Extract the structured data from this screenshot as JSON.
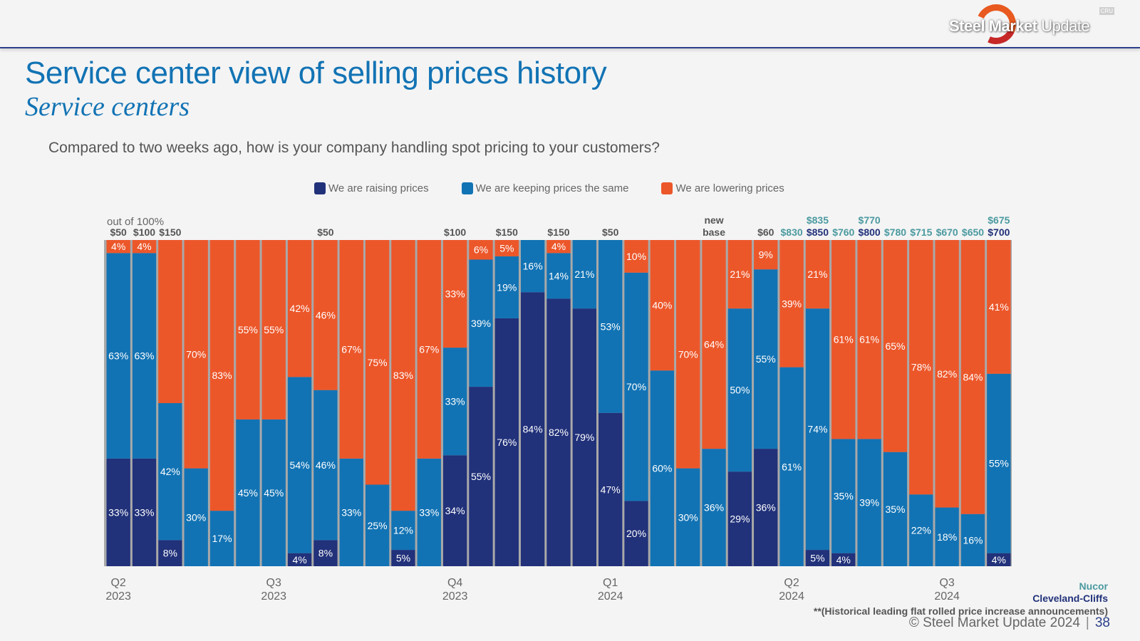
{
  "header": {
    "logo_bold": "Steel Market",
    "logo_light": "Update",
    "logo_badge": "CRU"
  },
  "title": "Service center view of selling prices history",
  "subtitle": "Service centers",
  "question": "Compared to two weeks ago, how is your company handling spot pricing to your customers?",
  "colors": {
    "raising": "#21317a",
    "same": "#1273b4",
    "lowering": "#ec572a",
    "nucor": "#4b9aa0",
    "cliffs": "#21317a",
    "announcement": "#555555"
  },
  "chart_data": {
    "type": "bar",
    "stacked": true,
    "normalized": true,
    "ylabel": "out of 100%",
    "ylim": [
      0,
      100
    ],
    "legend_position": "top",
    "series": [
      {
        "name": "We are raising prices",
        "key": "raising",
        "values": [
          33,
          33,
          8,
          0,
          0,
          0,
          0,
          4,
          8,
          0,
          0,
          5,
          0,
          34,
          55,
          76,
          84,
          82,
          79,
          47,
          20,
          0,
          0,
          0,
          29,
          36,
          0,
          5,
          4,
          0,
          0,
          0,
          0,
          0,
          4
        ]
      },
      {
        "name": "We are keeping prices the same",
        "key": "same",
        "values": [
          63,
          63,
          42,
          30,
          17,
          45,
          45,
          54,
          46,
          33,
          25,
          12,
          33,
          33,
          39,
          19,
          16,
          14,
          21,
          53,
          70,
          60,
          30,
          36,
          50,
          55,
          61,
          74,
          35,
          39,
          35,
          22,
          18,
          16,
          55
        ]
      },
      {
        "name": "We are lowering prices",
        "key": "lowering",
        "values": [
          4,
          4,
          50,
          70,
          83,
          55,
          55,
          42,
          46,
          67,
          75,
          83,
          67,
          33,
          6,
          5,
          0,
          4,
          0,
          0,
          10,
          40,
          70,
          64,
          21,
          9,
          39,
          21,
          61,
          61,
          65,
          78,
          82,
          84,
          41
        ]
      }
    ],
    "hidden_labels": {
      "lowering": [
        2
      ]
    },
    "x_ticks": [
      {
        "index": 0,
        "quarter": "Q2",
        "year": "2023"
      },
      {
        "index": 6,
        "quarter": "Q3",
        "year": "2023"
      },
      {
        "index": 13,
        "quarter": "Q4",
        "year": "2023"
      },
      {
        "index": 19,
        "quarter": "Q1",
        "year": "2024"
      },
      {
        "index": 26,
        "quarter": "Q2",
        "year": "2024"
      },
      {
        "index": 32,
        "quarter": "Q3",
        "year": "2024"
      }
    ],
    "announcements": [
      {
        "index": 0,
        "lines": [
          {
            "text": "$50",
            "type": "announcement"
          }
        ]
      },
      {
        "index": 1,
        "lines": [
          {
            "text": "$100",
            "type": "announcement"
          }
        ]
      },
      {
        "index": 2,
        "lines": [
          {
            "text": "$150",
            "type": "announcement"
          }
        ]
      },
      {
        "index": 8,
        "lines": [
          {
            "text": "$50",
            "type": "announcement"
          }
        ]
      },
      {
        "index": 13,
        "lines": [
          {
            "text": "$100",
            "type": "announcement"
          }
        ]
      },
      {
        "index": 15,
        "lines": [
          {
            "text": "$150",
            "type": "announcement"
          }
        ]
      },
      {
        "index": 17,
        "lines": [
          {
            "text": "$150",
            "type": "announcement"
          }
        ]
      },
      {
        "index": 19,
        "lines": [
          {
            "text": "$50",
            "type": "announcement"
          }
        ]
      },
      {
        "index": 23,
        "lines": [
          {
            "text": "new",
            "type": "announcement"
          },
          {
            "text": "base",
            "type": "announcement"
          }
        ]
      },
      {
        "index": 25,
        "lines": [
          {
            "text": "$60",
            "type": "announcement"
          }
        ]
      },
      {
        "index": 26,
        "lines": [
          {
            "text": "$830",
            "type": "nucor"
          }
        ]
      },
      {
        "index": 27,
        "lines": [
          {
            "text": "$835",
            "type": "nucor"
          },
          {
            "text": "$850",
            "type": "cliffs"
          }
        ]
      },
      {
        "index": 28,
        "lines": [
          {
            "text": "$760",
            "type": "nucor"
          }
        ]
      },
      {
        "index": 29,
        "lines": [
          {
            "text": "$770",
            "type": "nucor"
          },
          {
            "text": "$800",
            "type": "cliffs"
          }
        ]
      },
      {
        "index": 30,
        "lines": [
          {
            "text": "$780",
            "type": "nucor"
          }
        ]
      },
      {
        "index": 31,
        "lines": [
          {
            "text": "$715",
            "type": "nucor"
          }
        ]
      },
      {
        "index": 32,
        "lines": [
          {
            "text": "$670",
            "type": "nucor"
          }
        ]
      },
      {
        "index": 33,
        "lines": [
          {
            "text": "$650",
            "type": "nucor"
          }
        ]
      },
      {
        "index": 34,
        "lines": [
          {
            "text": "$675",
            "type": "nucor"
          },
          {
            "text": "$700",
            "type": "cliffs"
          }
        ]
      }
    ]
  },
  "notes": {
    "nucor": "Nucor",
    "cliffs": "Cleveland-Cliffs",
    "footnote": "**(Historical leading flat rolled price increase announcements)"
  },
  "footer": {
    "copyright": "© Steel Market Update 2024",
    "page": "38"
  }
}
